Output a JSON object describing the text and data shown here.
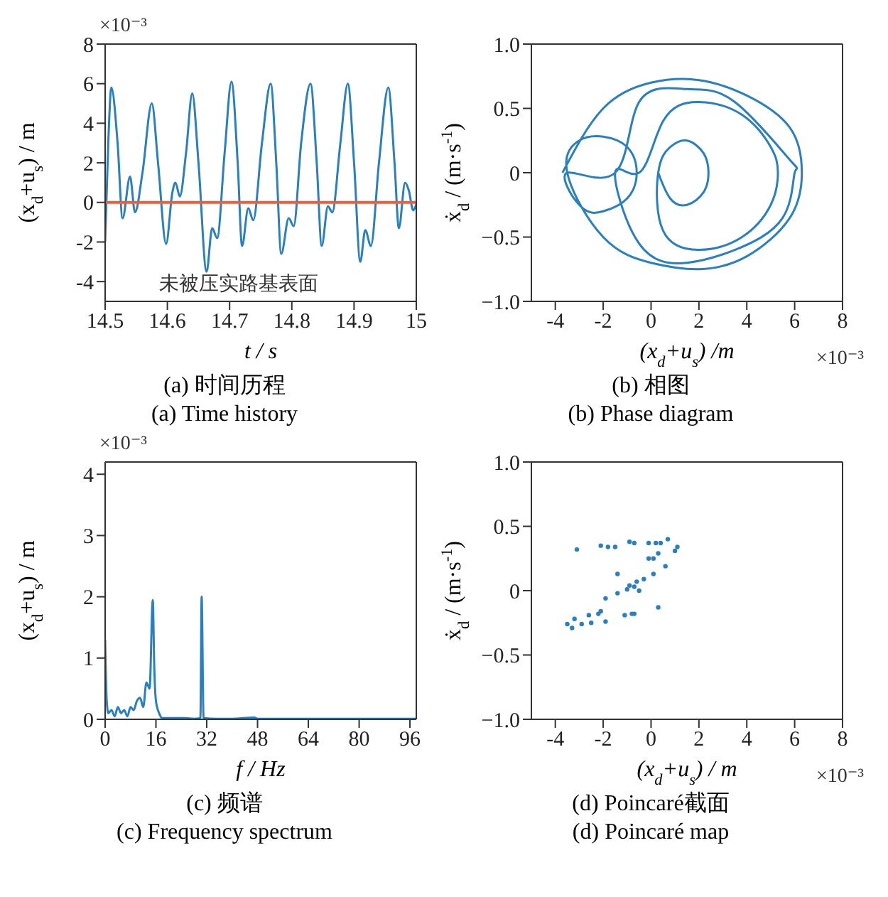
{
  "chart_data": [
    {
      "type": "line",
      "title": "(a) 时间历程",
      "subtitle": "(a) Time history",
      "xlabel": "t / s",
      "ylabel": "(x$_{d}$+u$_{s}$) / m",
      "xlim": [
        14.5,
        15
      ],
      "xticks": [
        14.5,
        14.6,
        14.7,
        14.8,
        14.9,
        15
      ],
      "ylim": [
        -5,
        8
      ],
      "yticks": [
        -4,
        -2,
        0,
        2,
        4,
        6,
        8
      ],
      "series": [
        {
          "color": "#2a7fc0",
          "x": [
            14.5,
            14.505,
            14.51,
            14.52,
            14.528,
            14.54,
            14.548,
            14.56,
            14.575,
            14.585,
            14.598,
            14.608,
            14.613,
            14.62,
            14.63,
            14.64,
            14.65,
            14.663,
            14.672,
            14.68,
            14.692,
            14.703,
            14.713,
            14.72,
            14.73,
            14.738,
            14.752,
            14.766,
            14.775,
            14.783,
            14.795,
            14.803,
            14.815,
            14.83,
            14.84,
            14.848,
            14.858,
            14.865,
            14.878,
            14.89,
            14.9,
            14.91,
            14.918,
            14.927,
            14.94,
            14.955,
            14.965,
            14.972,
            14.982,
            14.988,
            14.995,
            15
          ],
          "values": [
            -2.0,
            3.0,
            5.8,
            3.0,
            -0.8,
            1.3,
            -0.5,
            1.5,
            5.0,
            2.0,
            -2.1,
            0.5,
            1.0,
            0.3,
            2.5,
            5.5,
            2.0,
            -3.5,
            -1.3,
            -1.8,
            2.5,
            6.1,
            2.0,
            -2.2,
            -0.3,
            -0.9,
            3.0,
            6.0,
            2.0,
            -2.6,
            -0.8,
            -1.2,
            3.0,
            6.0,
            2.0,
            -2.2,
            -0.2,
            -0.5,
            3.0,
            6.0,
            2.0,
            -3.0,
            -1.4,
            -2.2,
            2.0,
            5.8,
            2.0,
            -1.3,
            1.0,
            0.6,
            -0.4,
            -0.1
          ]
        }
      ],
      "ref_lines": [
        {
          "axis": "y",
          "value": 0,
          "color": "#e8603c"
        }
      ],
      "annotations": [
        "×10⁻³",
        "未被压实路基表面"
      ]
    },
    {
      "type": "line",
      "title": "(b) 相图",
      "subtitle": "(b) Phase diagram",
      "xlabel": "(x$_{d}$+u$_{s}$) /m",
      "ylabel": "ẋ$_{d}$ / (m·s$^{-1}$)",
      "xlim": [
        -5,
        8
      ],
      "xticks": [
        -4,
        -2,
        0,
        2,
        4,
        6,
        8
      ],
      "ylim": [
        -1,
        1
      ],
      "yticks": [
        {
          "value": -1,
          "label": "−1.0"
        },
        {
          "value": -0.5,
          "label": "−0.5"
        },
        0,
        {
          "value": 0.5,
          "label": "0.5"
        },
        {
          "value": 1,
          "label": "1.0"
        }
      ],
      "series": [
        {
          "color": "#2a7fc0",
          "x": [
            -3.7,
            -2,
            0,
            2,
            4,
            5.8,
            6.3,
            5.8,
            4,
            2,
            0,
            -2,
            -3.5,
            -3,
            -2,
            -1,
            -0.6,
            -1,
            -2,
            -3,
            -3.5,
            -1.5,
            -0.5,
            1.5,
            3.5,
            5.8,
            6,
            5.5,
            3.5,
            1.5,
            -0.5,
            -1.5,
            -0.5,
            0.5,
            2,
            3.8,
            5,
            5.3,
            5,
            3.8,
            2,
            0.5,
            0.3,
            0.8,
            1.5,
            2.2,
            2.4,
            2.2,
            1.5,
            0.8,
            0.3
          ],
          "values": [
            0,
            0.5,
            0.7,
            0.72,
            0.6,
            0.35,
            0,
            -0.35,
            -0.65,
            -0.75,
            -0.7,
            -0.5,
            0,
            0.25,
            0.28,
            0.2,
            0,
            -0.2,
            -0.3,
            -0.25,
            0,
            0,
            0.55,
            0.65,
            0.55,
            0.1,
            0,
            -0.35,
            -0.6,
            -0.7,
            -0.55,
            0,
            0,
            0.4,
            0.55,
            0.45,
            0.2,
            0,
            -0.25,
            -0.5,
            -0.6,
            -0.45,
            0,
            0.2,
            0.25,
            0.15,
            0,
            -0.15,
            -0.25,
            -0.2,
            0
          ]
        }
      ],
      "annotations": [
        "×10⁻³"
      ]
    },
    {
      "type": "line",
      "title": "(c) 频谱",
      "subtitle": "(c) Frequency spectrum",
      "xlabel": "f / Hz",
      "ylabel": "(x$_{d}$+u$_{s}$) / m",
      "xlim": [
        0,
        98
      ],
      "xticks": [
        0,
        16,
        32,
        48,
        64,
        80,
        96
      ],
      "ylim": [
        0,
        4.2
      ],
      "yticks": [
        0,
        1,
        2,
        3,
        4
      ],
      "series": [
        {
          "color": "#2a7fc0",
          "x": [
            0,
            0.5,
            1,
            2,
            3,
            4,
            5,
            6,
            7,
            8,
            9,
            10,
            11,
            12,
            13,
            14,
            15,
            15.5,
            16,
            17,
            18,
            20,
            25,
            28,
            30,
            30.4,
            31,
            35,
            40,
            47,
            48,
            60,
            80,
            98
          ],
          "values": [
            1.3,
            0.3,
            0.1,
            0.15,
            0.05,
            0.2,
            0.1,
            0.15,
            0.05,
            0.2,
            0.15,
            0.3,
            0.35,
            0.2,
            0.6,
            0.5,
            1.95,
            0.8,
            0.3,
            0.1,
            0.02,
            0.02,
            0.02,
            0.01,
            0.02,
            2.0,
            0.02,
            0.01,
            0.01,
            0.03,
            0.01,
            0.01,
            0.01,
            0.01
          ]
        }
      ],
      "annotations": [
        "×10⁻³"
      ]
    },
    {
      "type": "scatter",
      "title": "(d) Poincaré截面",
      "subtitle": "(d) Poincaré map",
      "xlabel": "(x$_{d}$+u$_{s}$) / m",
      "ylabel": "ẋ$_{d}$ / (m·s$^{-1}$)",
      "xlim": [
        -5,
        8
      ],
      "xticks": [
        -4,
        -2,
        0,
        2,
        4,
        6,
        8
      ],
      "ylim": [
        -1,
        1
      ],
      "yticks": [
        {
          "value": -1,
          "label": "−1.0"
        },
        {
          "value": -0.5,
          "label": "−0.5"
        },
        0,
        {
          "value": 0.5,
          "label": "0.5"
        },
        {
          "value": 1,
          "label": "1.0"
        }
      ],
      "marker": "circle",
      "series": [
        {
          "color": "#2a7fc0",
          "x": [
            -3.1,
            -2.1,
            -1.8,
            -1.5,
            -0.9,
            -0.7,
            -0.1,
            0.2,
            0.4,
            0.7,
            1.0,
            1.1,
            0.3,
            -0.1,
            0.1,
            0.6,
            0.1,
            -1.4,
            -0.3,
            -0.6,
            -0.9,
            -0.7,
            -1.0,
            -1.4,
            -0.5,
            -1.9,
            0.3,
            -1.1,
            -0.8,
            -0.7,
            -2.1,
            -2.2,
            -2.6,
            -1.9,
            -2.5,
            -2.9,
            -3.2,
            -3.5,
            -3.3
          ],
          "values": [
            0.32,
            0.35,
            0.34,
            0.34,
            0.38,
            0.37,
            0.37,
            0.37,
            0.37,
            0.4,
            0.31,
            0.34,
            0.29,
            0.25,
            0.25,
            0.19,
            0.13,
            0.13,
            0.09,
            0.07,
            0.04,
            0.03,
            0.01,
            -0.02,
            0.0,
            -0.06,
            -0.13,
            -0.19,
            -0.18,
            -0.18,
            -0.16,
            -0.18,
            -0.19,
            -0.24,
            -0.25,
            -0.26,
            -0.22,
            -0.26,
            -0.29
          ]
        }
      ],
      "annotations": [
        "×10⁻³"
      ]
    }
  ]
}
